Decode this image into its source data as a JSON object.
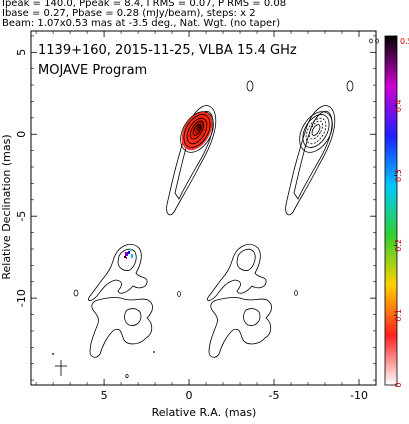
{
  "header": {
    "line1": "Ipeak = 140.0, Ppeak = 8.4, I RMS = 0.07, P RMS = 0.08",
    "line2": "Ibase = 0.27, Pbase = 0.28 (mJy/beam), steps: x 2",
    "line3": "Beam: 1.07x0.53 mas at -3.5 deg., Nat. Wgt. (no taper)"
  },
  "chart_data": {
    "type": "heatmap",
    "title": "1139+160, 2015-11-25, VLBA 15.4 GHz",
    "subtitle": "MOJAVE Program",
    "xlabel": "Relative R.A. (mas)",
    "ylabel": "Relative Declination (mas)",
    "xlim": [
      9.3,
      -11
    ],
    "ylim": [
      -15.3,
      6.3
    ],
    "xticks": [
      5,
      0,
      -5,
      -10
    ],
    "yticks": [
      5,
      0,
      -5,
      -10
    ],
    "colorbar": {
      "ticks": [
        0,
        0.1,
        0.2,
        0.3,
        0.4,
        0.5
      ],
      "top_label": "0.5",
      "range": [
        0,
        0.5
      ],
      "colors": [
        "#ffffff",
        "#ff2020",
        "#ffd000",
        "#30d030",
        "#00c8ff",
        "#2020ff",
        "#d000d0",
        "#000000"
      ]
    },
    "panels": [
      {
        "name": "left",
        "x_offset_mas": 0
      },
      {
        "name": "right",
        "x_offset_mas": -6
      }
    ],
    "core": {
      "x": 0,
      "y": 0
    },
    "peak_value": 140.0,
    "contour_steps": 2
  }
}
